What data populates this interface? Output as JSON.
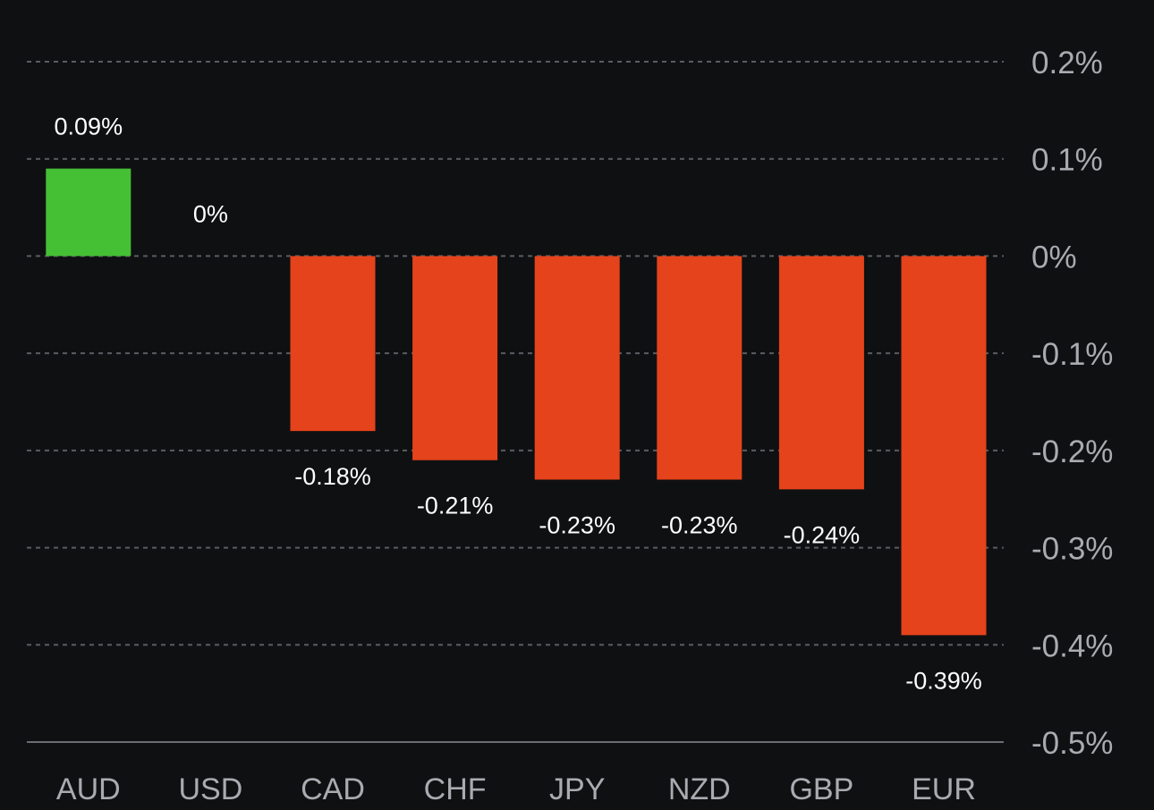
{
  "chart_data": {
    "type": "bar",
    "title": "",
    "xlabel": "",
    "ylabel": "",
    "categories": [
      "AUD",
      "USD",
      "CAD",
      "CHF",
      "JPY",
      "NZD",
      "GBP",
      "EUR"
    ],
    "values": [
      0.09,
      0,
      -0.18,
      -0.21,
      -0.23,
      -0.23,
      -0.24,
      -0.39
    ],
    "value_labels": [
      "0.09%",
      "0%",
      "-0.18%",
      "-0.21%",
      "-0.23%",
      "-0.23%",
      "-0.24%",
      "-0.39%"
    ],
    "ylim": [
      -0.5,
      0.2
    ],
    "y_ticks": [
      0.2,
      0.1,
      0,
      -0.1,
      -0.2,
      -0.3,
      -0.4,
      -0.5
    ],
    "y_tick_labels": [
      "0.2%",
      "0.1%",
      "0%",
      "-0.1%",
      "-0.2%",
      "-0.3%",
      "-0.4%",
      "-0.5%"
    ],
    "y_axis_side": "right",
    "grid": true,
    "legend": "none",
    "colors": {
      "background": "#0f1012",
      "positive": "#45c035",
      "negative": "#e5431b",
      "grid": "#5a5c61",
      "axis_line": "#6b6d72",
      "tick_label": "#a9abb0",
      "value_label": "#ffffff"
    }
  }
}
